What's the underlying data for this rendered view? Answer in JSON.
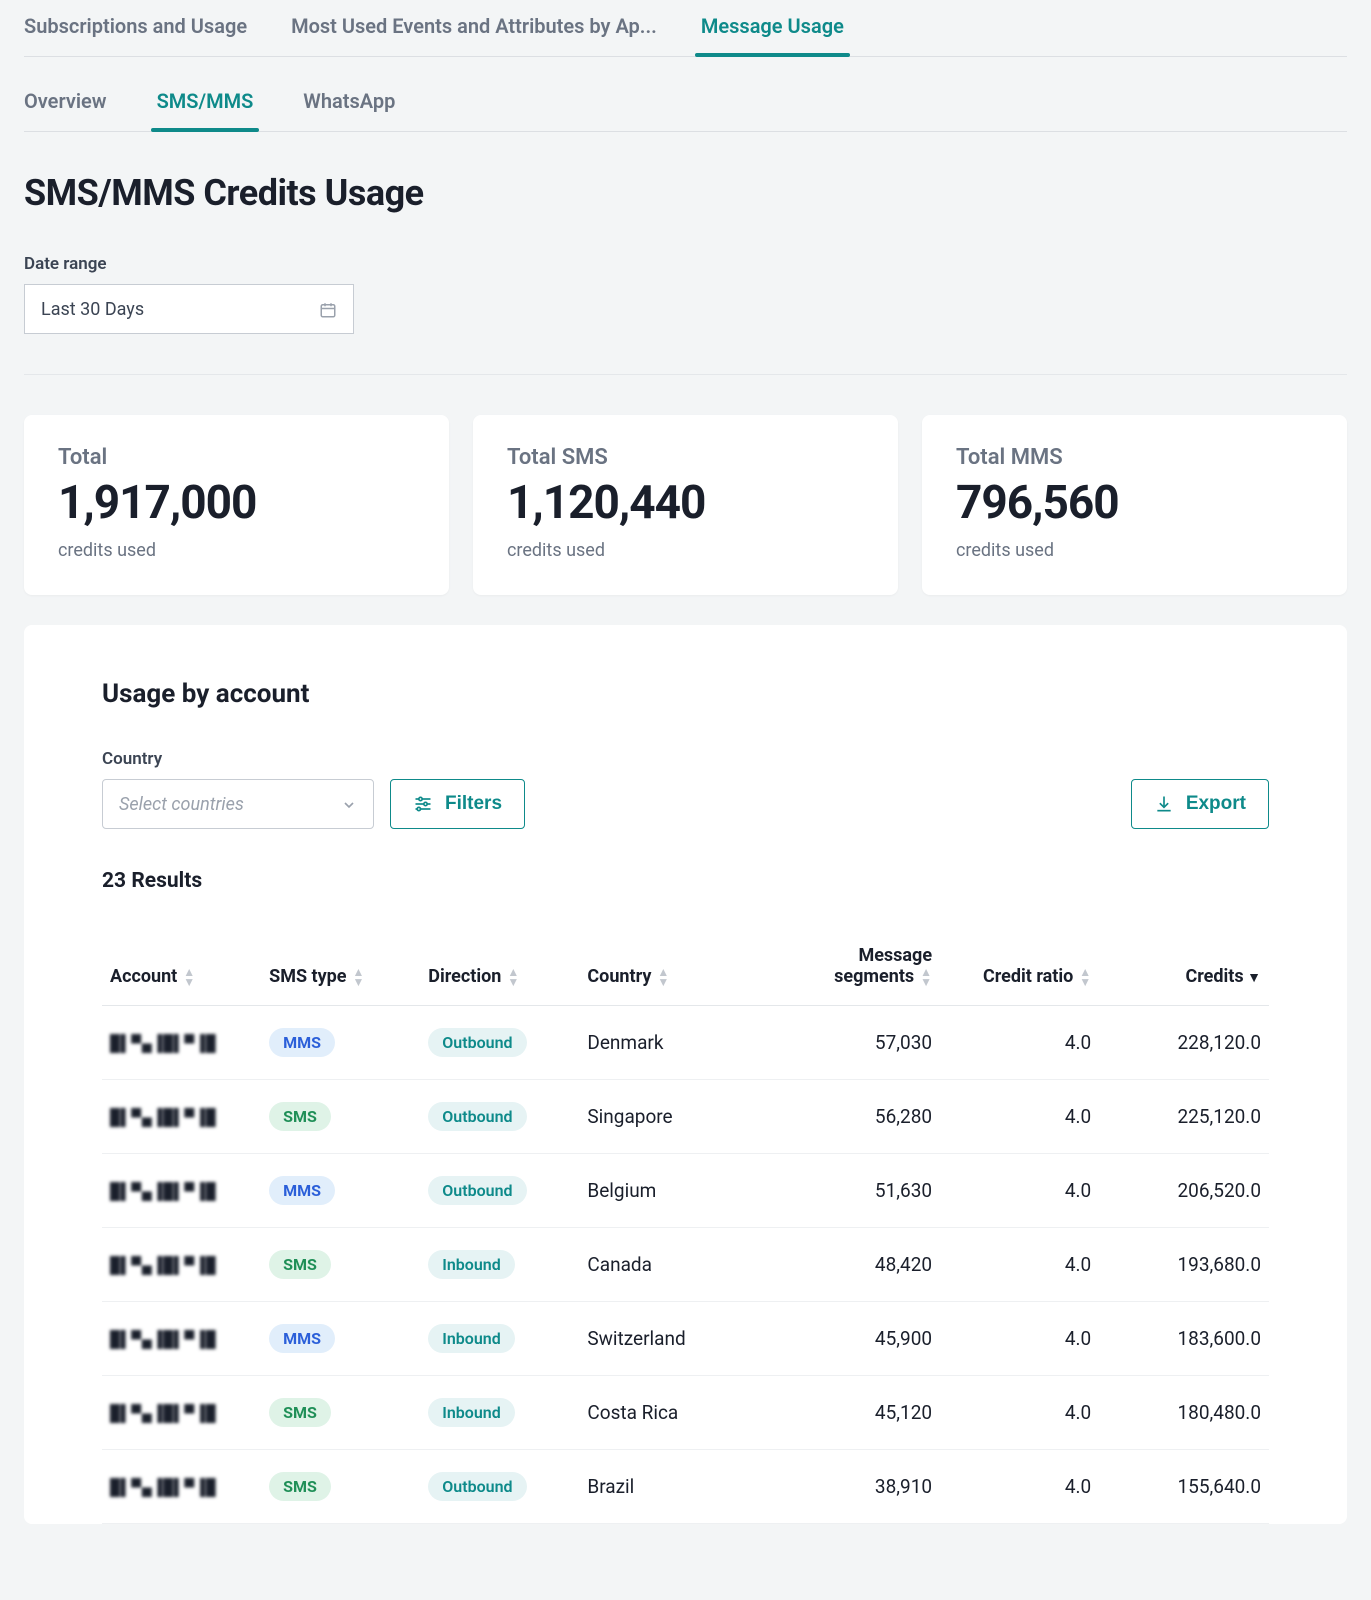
{
  "colors": {
    "accent": "#0e8a8a",
    "text_primary": "#1a1f2b",
    "text_muted": "#6a7382",
    "border": "#dcdfe3",
    "page_bg": "#f3f5f6",
    "card_bg": "#ffffff",
    "pill_mms_bg": "#e1eefb",
    "pill_mms_fg": "#2b5fd9",
    "pill_sms_bg": "#dff3e7",
    "pill_sms_fg": "#1f8f57",
    "pill_dir_bg": "#e6f3f4",
    "pill_dir_fg": "#0e8a8a"
  },
  "top_tabs": {
    "items": [
      {
        "label": "Subscriptions and Usage",
        "active": false
      },
      {
        "label": "Most Used Events and Attributes by Ap...",
        "active": false
      },
      {
        "label": "Message Usage",
        "active": true
      }
    ]
  },
  "sub_tabs": {
    "items": [
      {
        "label": "Overview",
        "active": false
      },
      {
        "label": "SMS/MMS",
        "active": true
      },
      {
        "label": "WhatsApp",
        "active": false
      }
    ]
  },
  "page": {
    "title": "SMS/MMS Credits Usage"
  },
  "date_range": {
    "label": "Date range",
    "value": "Last 30 Days"
  },
  "stats": {
    "total": {
      "title": "Total",
      "value": "1,917,000",
      "sub": "credits used"
    },
    "total_sms": {
      "title": "Total SMS",
      "value": "1,120,440",
      "sub": "credits used"
    },
    "total_mms": {
      "title": "Total MMS",
      "value": "796,560",
      "sub": "credits used"
    }
  },
  "usage_panel": {
    "title": "Usage by account",
    "country_label": "Country",
    "country_placeholder": "Select countries",
    "filters_label": "Filters",
    "export_label": "Export",
    "results_label": "23 Results",
    "columns": {
      "account": "Account",
      "sms_type": "SMS type",
      "direction": "Direction",
      "country": "Country",
      "segments": "Message segments",
      "credit_ratio": "Credit ratio",
      "credits": "Credits"
    },
    "sort": {
      "column": "credits",
      "dir": "desc"
    },
    "rows": [
      {
        "type": "MMS",
        "direction": "Outbound",
        "country": "Denmark",
        "segments": "57,030",
        "ratio": "4.0",
        "credits": "228,120.0"
      },
      {
        "type": "SMS",
        "direction": "Outbound",
        "country": "Singapore",
        "segments": "56,280",
        "ratio": "4.0",
        "credits": "225,120.0"
      },
      {
        "type": "MMS",
        "direction": "Outbound",
        "country": "Belgium",
        "segments": "51,630",
        "ratio": "4.0",
        "credits": "206,520.0"
      },
      {
        "type": "SMS",
        "direction": "Inbound",
        "country": "Canada",
        "segments": "48,420",
        "ratio": "4.0",
        "credits": "193,680.0"
      },
      {
        "type": "MMS",
        "direction": "Inbound",
        "country": "Switzerland",
        "segments": "45,900",
        "ratio": "4.0",
        "credits": "183,600.0"
      },
      {
        "type": "SMS",
        "direction": "Inbound",
        "country": "Costa Rica",
        "segments": "45,120",
        "ratio": "4.0",
        "credits": "180,480.0"
      },
      {
        "type": "SMS",
        "direction": "Outbound",
        "country": "Brazil",
        "segments": "38,910",
        "ratio": "4.0",
        "credits": "155,640.0"
      }
    ]
  }
}
